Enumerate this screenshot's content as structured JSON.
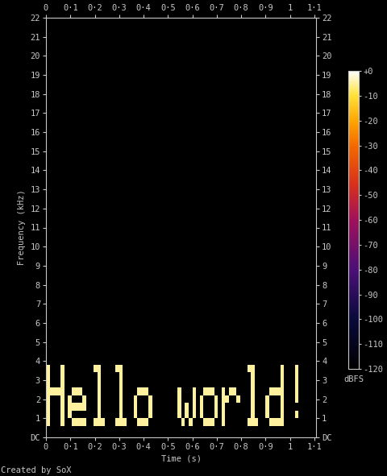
{
  "chart_data": {
    "type": "heatmap",
    "xlabel": "Time (s)",
    "ylabel": "Frequency (kHz)",
    "annotations": [
      "Created by SoX"
    ],
    "grid": false,
    "xlim": [
      0,
      1.107
    ],
    "ylim": [
      0,
      22
    ],
    "xticks": [
      0,
      {
        "value": 0.1,
        "label": "0·1"
      },
      {
        "value": 0.2,
        "label": "0·2"
      },
      {
        "value": 0.3,
        "label": "0·3"
      },
      {
        "value": 0.4,
        "label": "0·4"
      },
      {
        "value": 0.5,
        "label": "0·5"
      },
      {
        "value": 0.6,
        "label": "0·6"
      },
      {
        "value": 0.7,
        "label": "0·7"
      },
      {
        "value": 0.8,
        "label": "0·8"
      },
      {
        "value": 0.9,
        "label": "0·9"
      },
      1,
      {
        "value": 1.1,
        "label": "1·1"
      }
    ],
    "yticks": [
      {
        "value": 0,
        "label": "DC"
      },
      1,
      2,
      3,
      4,
      5,
      6,
      7,
      8,
      9,
      10,
      11,
      12,
      13,
      14,
      15,
      16,
      17,
      18,
      19,
      20,
      21,
      22
    ],
    "x_edges": [
      0,
      0.015,
      0.03,
      0.045,
      0.06,
      0.075,
      0.09,
      0.105,
      0.12,
      0.135,
      0.15,
      0.165,
      0.18,
      0.195,
      0.21,
      0.225,
      0.24,
      0.255,
      0.27,
      0.285,
      0.3,
      0.315,
      0.33,
      0.345,
      0.36,
      0.375,
      0.39,
      0.405,
      0.42,
      0.435,
      0.45,
      0.465,
      0.48,
      0.495,
      0.51,
      0.525,
      0.54,
      0.555,
      0.57,
      0.585,
      0.6,
      0.615,
      0.63,
      0.645,
      0.66,
      0.675,
      0.69,
      0.705,
      0.72,
      0.735,
      0.75,
      0.765,
      0.78,
      0.795,
      0.81,
      0.825,
      0.84,
      0.855,
      0.87,
      0.885,
      0.9,
      0.915,
      0.93,
      0.945,
      0.96,
      0.975,
      0.99,
      1.005,
      1.02,
      1.035,
      1.05,
      1.065,
      1.08
    ],
    "y_edges": [
      0,
      0.6,
      1.0,
      1.4,
      1.8,
      2.2,
      2.6,
      3.0,
      3.4,
      3.8,
      22
    ],
    "cells": [
      [
        -120,
        -120,
        -120,
        -120,
        -120,
        -120,
        -120,
        -120,
        -120,
        -120,
        -120,
        -120,
        -120,
        -120,
        -120,
        -120,
        -120,
        -120,
        -120,
        -120,
        -120,
        -120,
        -120,
        -120,
        -120,
        -120,
        -120,
        -120,
        -120,
        -120,
        -120,
        -120,
        -120,
        -120,
        -120,
        -120,
        -120,
        -120,
        -120,
        -120,
        -120,
        -120,
        -120,
        -120,
        -120,
        -120,
        -120,
        -120,
        -120,
        -120,
        -120,
        -120,
        -120,
        -120,
        -120,
        -120,
        -120,
        -120,
        -120,
        -120,
        -120,
        -120,
        -120,
        -120,
        -120,
        -120,
        -120,
        -120,
        -120,
        -120,
        -120,
        -120
      ],
      [
        -5,
        -120,
        -120,
        -120,
        -5,
        -120,
        -120,
        -5,
        -5,
        -5,
        -5,
        -120,
        -120,
        -5,
        -5,
        -5,
        -120,
        -120,
        -120,
        -5,
        -5,
        -5,
        -120,
        -120,
        -120,
        -5,
        -5,
        -5,
        -120,
        -120,
        -120,
        -120,
        -120,
        -120,
        -120,
        -120,
        -120,
        -5,
        -120,
        -5,
        -120,
        -120,
        -120,
        -5,
        -5,
        -5,
        -120,
        -120,
        -5,
        -120,
        -120,
        -120,
        -120,
        -120,
        -120,
        -5,
        -5,
        -5,
        -120,
        -120,
        -120,
        -5,
        -5,
        -5,
        -5,
        -120,
        -120,
        -120,
        -120,
        -120,
        -120,
        -120
      ],
      [
        -5,
        -120,
        -120,
        -120,
        -5,
        -120,
        -5,
        -120,
        -120,
        -120,
        -120,
        -120,
        -120,
        -120,
        -5,
        -120,
        -120,
        -120,
        -120,
        -120,
        -5,
        -120,
        -120,
        -120,
        -5,
        -120,
        -120,
        -120,
        -5,
        -120,
        -120,
        -120,
        -120,
        -120,
        -120,
        -120,
        -5,
        -120,
        -5,
        -120,
        -5,
        -120,
        -5,
        -120,
        -120,
        -120,
        -5,
        -120,
        -5,
        -120,
        -120,
        -120,
        -120,
        -120,
        -120,
        -120,
        -5,
        -120,
        -120,
        -120,
        -5,
        -120,
        -120,
        -120,
        -5,
        -120,
        -120,
        -120,
        -5,
        -120,
        -120,
        -120
      ],
      [
        -5,
        -120,
        -120,
        -120,
        -5,
        -120,
        -5,
        -5,
        -5,
        -5,
        -5,
        -120,
        -120,
        -120,
        -5,
        -120,
        -120,
        -120,
        -120,
        -120,
        -5,
        -120,
        -120,
        -120,
        -5,
        -120,
        -120,
        -120,
        -5,
        -120,
        -120,
        -120,
        -120,
        -120,
        -120,
        -120,
        -5,
        -120,
        -5,
        -120,
        -5,
        -120,
        -5,
        -120,
        -120,
        -120,
        -5,
        -120,
        -5,
        -120,
        -120,
        -120,
        -120,
        -120,
        -120,
        -120,
        -5,
        -120,
        -120,
        -120,
        -5,
        -120,
        -120,
        -120,
        -5,
        -120,
        -120,
        -120,
        -120,
        -120,
        -120,
        -120
      ],
      [
        -5,
        -120,
        -120,
        -120,
        -5,
        -120,
        -5,
        -120,
        -120,
        -120,
        -5,
        -120,
        -120,
        -120,
        -5,
        -120,
        -120,
        -120,
        -120,
        -120,
        -5,
        -120,
        -120,
        -120,
        -5,
        -120,
        -120,
        -120,
        -5,
        -120,
        -120,
        -120,
        -120,
        -120,
        -120,
        -120,
        -5,
        -120,
        -120,
        -120,
        -5,
        -120,
        -5,
        -120,
        -120,
        -120,
        -5,
        -120,
        -5,
        -5,
        -120,
        -120,
        -5,
        -120,
        -120,
        -120,
        -5,
        -120,
        -120,
        -120,
        -5,
        -120,
        -120,
        -120,
        -5,
        -120,
        -120,
        -120,
        -5,
        -120,
        -120,
        -120
      ],
      [
        -5,
        -5,
        -5,
        -5,
        -5,
        -120,
        -120,
        -5,
        -5,
        -5,
        -120,
        -120,
        -120,
        -120,
        -5,
        -120,
        -120,
        -120,
        -120,
        -120,
        -5,
        -120,
        -120,
        -120,
        -120,
        -5,
        -5,
        -5,
        -120,
        -120,
        -120,
        -120,
        -120,
        -120,
        -120,
        -120,
        -5,
        -120,
        -120,
        -120,
        -5,
        -120,
        -120,
        -5,
        -5,
        -5,
        -120,
        -120,
        -5,
        -120,
        -5,
        -5,
        -120,
        -120,
        -120,
        -120,
        -5,
        -120,
        -120,
        -120,
        -120,
        -5,
        -5,
        -5,
        -5,
        -120,
        -120,
        -120,
        -5,
        -120,
        -120,
        -120
      ],
      [
        -5,
        -120,
        -120,
        -120,
        -5,
        -120,
        -120,
        -120,
        -120,
        -120,
        -120,
        -120,
        -120,
        -120,
        -5,
        -120,
        -120,
        -120,
        -120,
        -120,
        -5,
        -120,
        -120,
        -120,
        -120,
        -120,
        -120,
        -120,
        -120,
        -120,
        -120,
        -120,
        -120,
        -120,
        -120,
        -120,
        -120,
        -120,
        -120,
        -120,
        -120,
        -120,
        -120,
        -120,
        -120,
        -120,
        -120,
        -120,
        -120,
        -120,
        -120,
        -120,
        -120,
        -120,
        -120,
        -120,
        -5,
        -120,
        -120,
        -120,
        -120,
        -120,
        -120,
        -120,
        -5,
        -120,
        -120,
        -120,
        -5,
        -120,
        -120,
        -120
      ],
      [
        -5,
        -120,
        -120,
        -120,
        -5,
        -120,
        -120,
        -120,
        -120,
        -120,
        -120,
        -120,
        -120,
        -120,
        -5,
        -120,
        -120,
        -120,
        -120,
        -120,
        -5,
        -120,
        -120,
        -120,
        -120,
        -120,
        -120,
        -120,
        -120,
        -120,
        -120,
        -120,
        -120,
        -120,
        -120,
        -120,
        -120,
        -120,
        -120,
        -120,
        -120,
        -120,
        -120,
        -120,
        -120,
        -120,
        -120,
        -120,
        -120,
        -120,
        -120,
        -120,
        -120,
        -120,
        -120,
        -120,
        -5,
        -120,
        -120,
        -120,
        -120,
        -120,
        -120,
        -120,
        -5,
        -120,
        -120,
        -120,
        -5,
        -120,
        -120,
        -120
      ],
      [
        -5,
        -120,
        -120,
        -120,
        -5,
        -120,
        -120,
        -120,
        -120,
        -120,
        -120,
        -120,
        -120,
        -5,
        -5,
        -120,
        -120,
        -120,
        -120,
        -5,
        -5,
        -120,
        -120,
        -120,
        -120,
        -120,
        -120,
        -120,
        -120,
        -120,
        -120,
        -120,
        -120,
        -120,
        -120,
        -120,
        -120,
        -120,
        -120,
        -120,
        -120,
        -120,
        -120,
        -120,
        -120,
        -120,
        -120,
        -120,
        -120,
        -120,
        -120,
        -120,
        -120,
        -120,
        -120,
        -5,
        -5,
        -120,
        -120,
        -120,
        -120,
        -120,
        -120,
        -120,
        -5,
        -120,
        -120,
        -120,
        -5,
        -120,
        -120,
        -120
      ],
      [
        -120,
        -120,
        -120,
        -120,
        -120,
        -120,
        -120,
        -120,
        -120,
        -120,
        -120,
        -120,
        -120,
        -120,
        -120,
        -120,
        -120,
        -120,
        -120,
        -120,
        -120,
        -120,
        -120,
        -120,
        -120,
        -120,
        -120,
        -120,
        -120,
        -120,
        -120,
        -120,
        -120,
        -120,
        -120,
        -120,
        -120,
        -120,
        -120,
        -120,
        -120,
        -120,
        -120,
        -120,
        -120,
        -120,
        -120,
        -120,
        -120,
        -120,
        -120,
        -120,
        -120,
        -120,
        -120,
        -120,
        -120,
        -120,
        -120,
        -120,
        -120,
        -120,
        -120,
        -120,
        -120,
        -120,
        -120,
        -120,
        -120,
        -120,
        -120,
        -120
      ]
    ],
    "colorbar": {
      "label": "dBFS",
      "range": [
        -120,
        0
      ],
      "ticks": [
        {
          "value": 0,
          "label": "+0"
        },
        -10,
        -20,
        -30,
        -40,
        -50,
        -60,
        -70,
        -80,
        -90,
        -100,
        -110,
        -120
      ]
    }
  }
}
